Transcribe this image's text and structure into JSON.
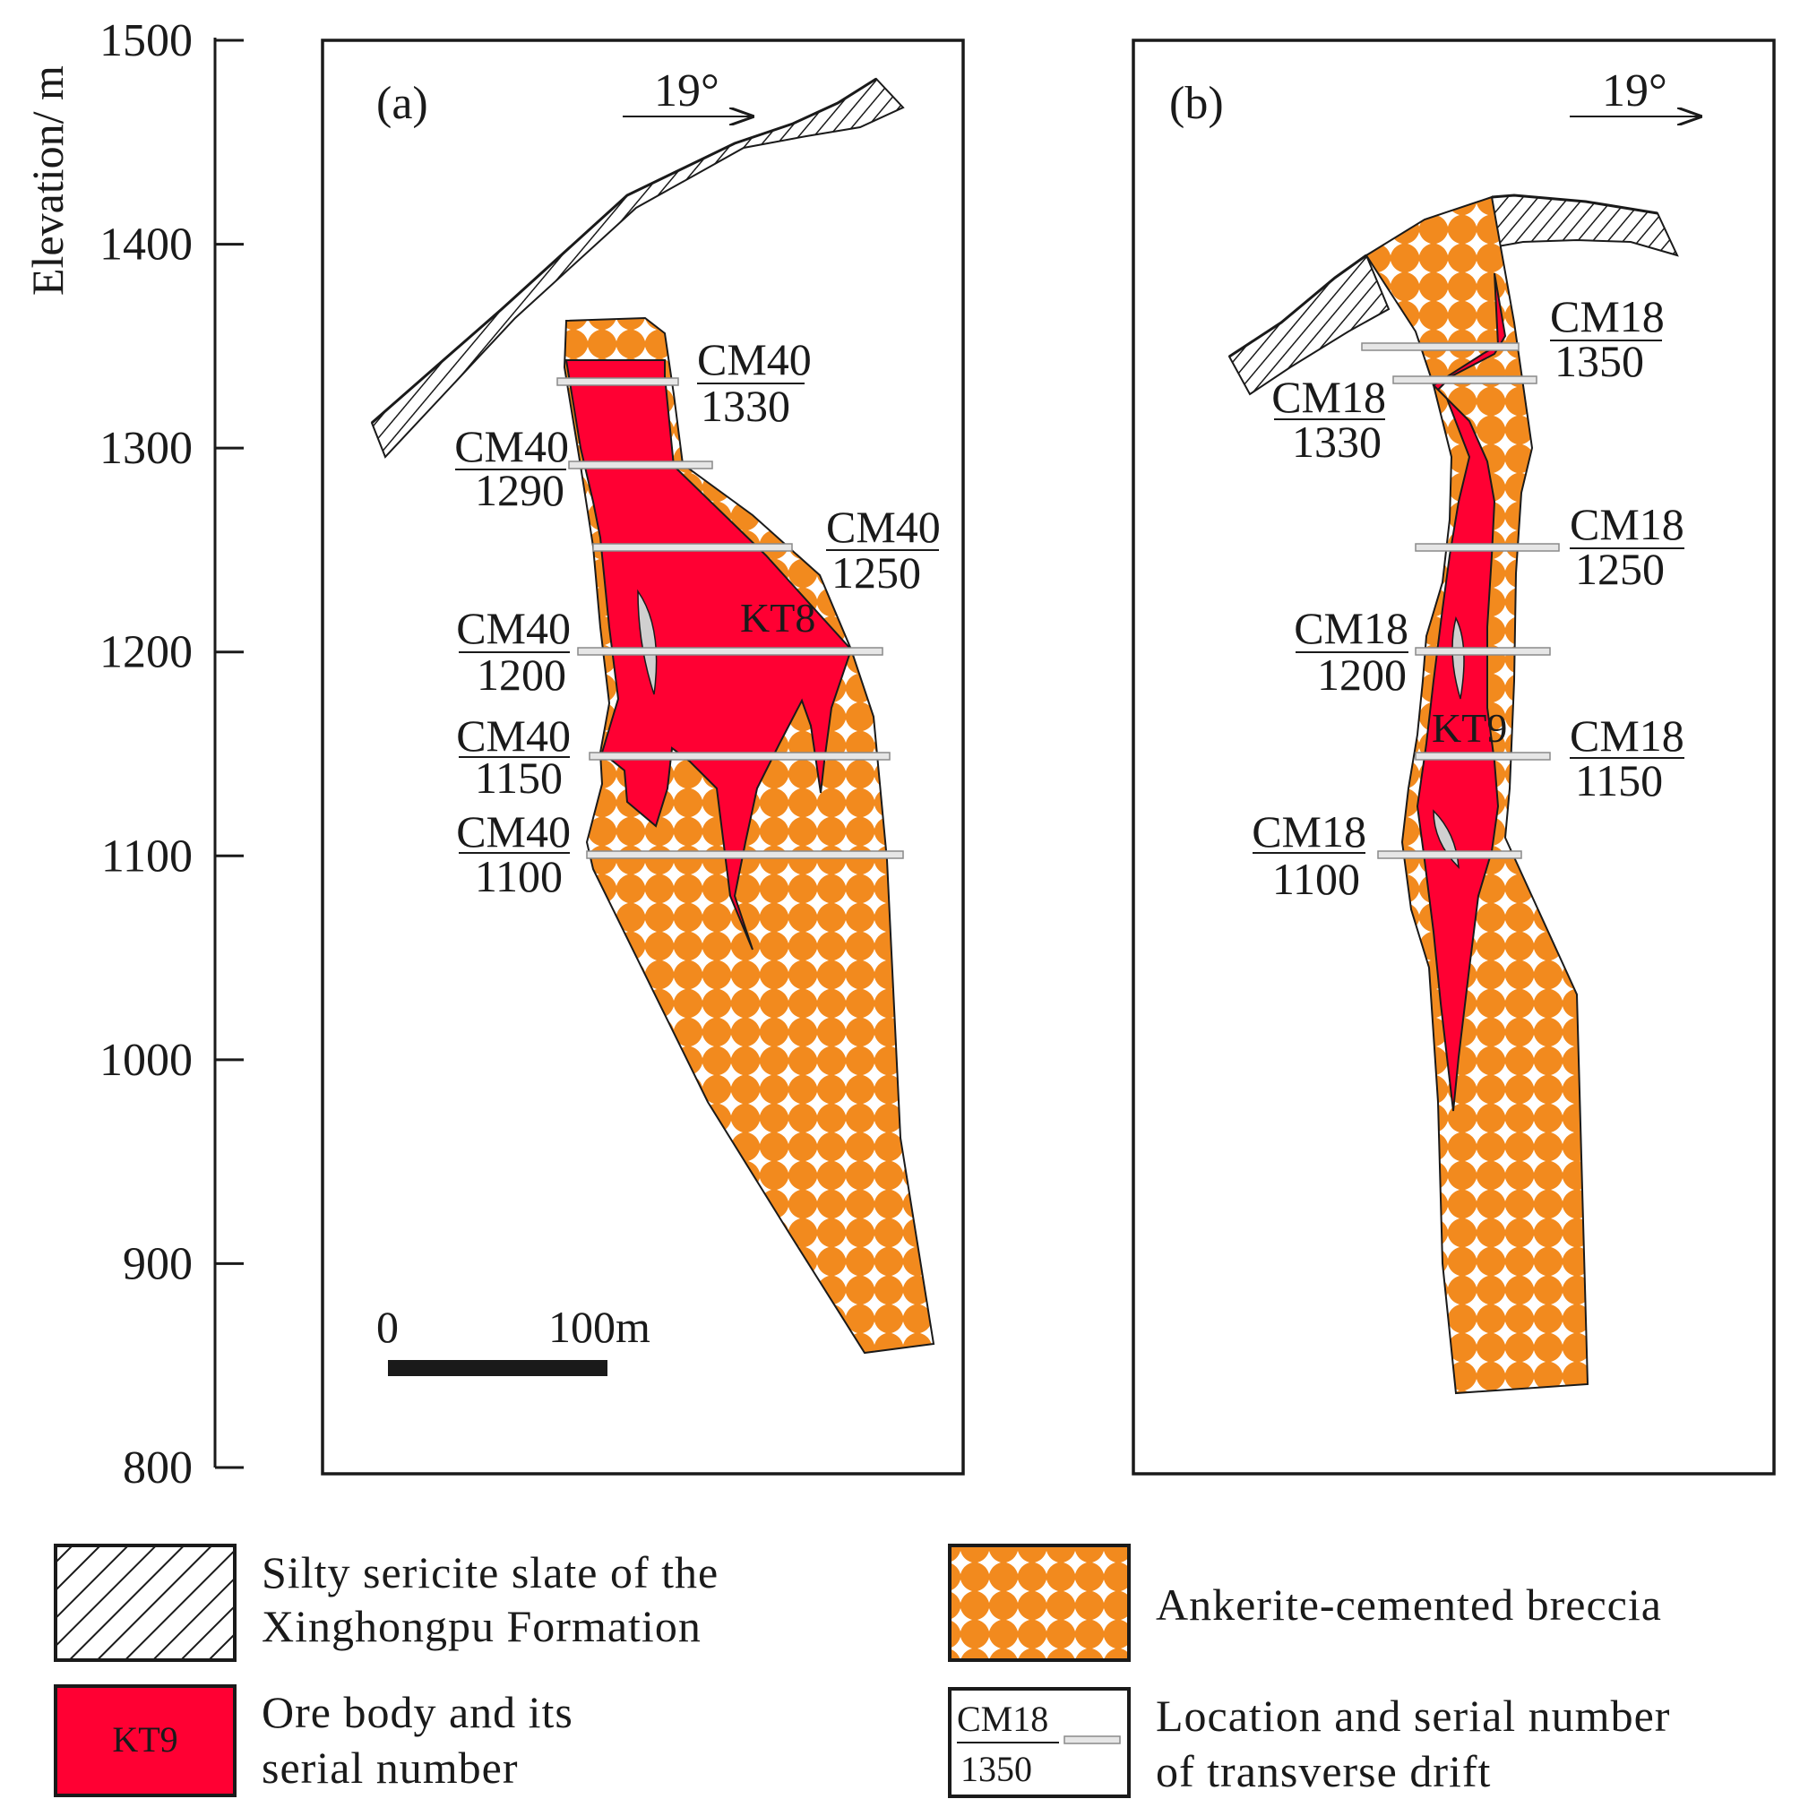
{
  "colors": {
    "ore": "#ff0033",
    "breccia": "#f28a1e",
    "ink": "#1a1a1a",
    "drift": "#e6e6e6"
  },
  "axis": {
    "label": "Elevation/ m",
    "min": 800,
    "max": 1500,
    "ticks": [
      "1500",
      "1400",
      "1300",
      "1200",
      "1100",
      "1000",
      "900",
      "800"
    ]
  },
  "panel_a": {
    "label": "(a)",
    "angle": "19°",
    "ore_label": "KT8",
    "scale_zero": "0",
    "scale_end": "100m",
    "drifts": [
      {
        "name": "CM40",
        "elev": "1330"
      },
      {
        "name": "CM40",
        "elev": "1290"
      },
      {
        "name": "CM40",
        "elev": "1250"
      },
      {
        "name": "CM40",
        "elev": "1200"
      },
      {
        "name": "CM40",
        "elev": "1150"
      },
      {
        "name": "CM40",
        "elev": "1100"
      }
    ]
  },
  "panel_b": {
    "label": "(b)",
    "angle": "19°",
    "ore_label": "KT9",
    "drifts": [
      {
        "name": "CM18",
        "elev": "1350"
      },
      {
        "name": "CM18",
        "elev": "1330"
      },
      {
        "name": "CM18",
        "elev": "1250"
      },
      {
        "name": "CM18",
        "elev": "1200"
      },
      {
        "name": "CM18",
        "elev": "1150"
      },
      {
        "name": "CM18",
        "elev": "1100"
      }
    ]
  },
  "legend": {
    "slate_line1": "Silty sericite slate of the",
    "slate_line2": "Xinghongpu Formation",
    "breccia": "Ankerite-cemented breccia",
    "ore_line1": "Ore body and its",
    "ore_line2": "serial number",
    "ore_swatch": "KT9",
    "drift_line1": "Location and serial number",
    "drift_line2": "of transverse drift",
    "drift_swatch_name": "CM18",
    "drift_swatch_elev": "1350"
  }
}
